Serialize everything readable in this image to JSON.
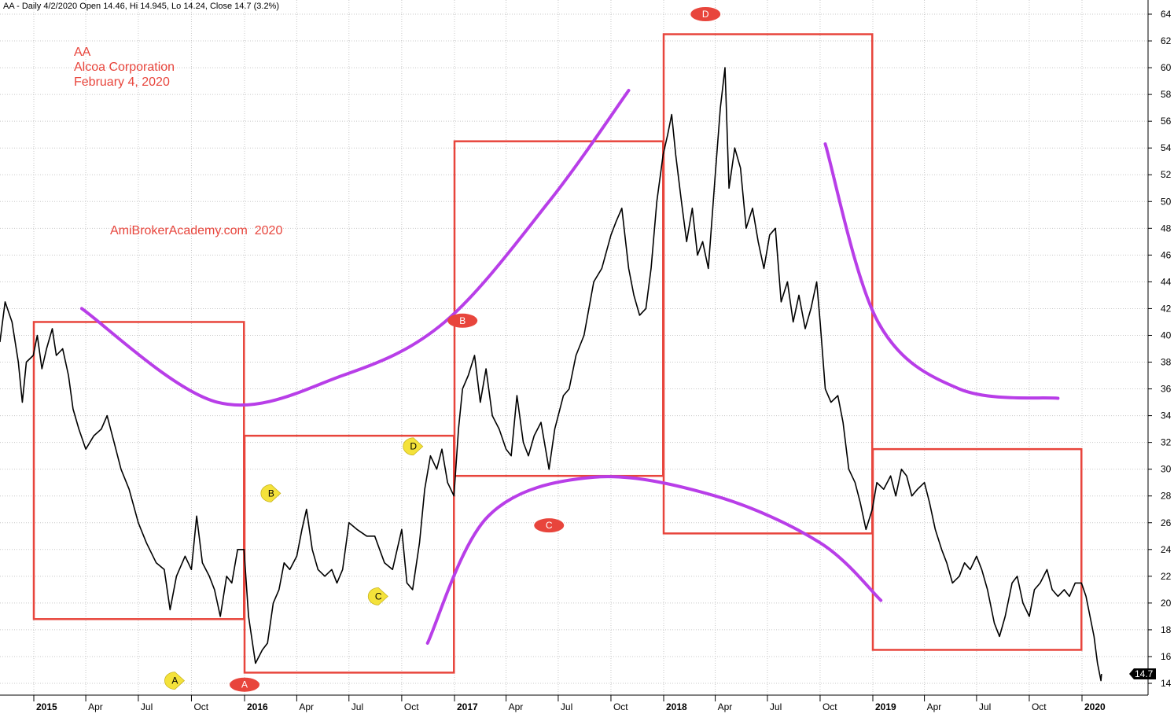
{
  "header": {
    "quote_line": "AA - Daily 4/2/2020 Open 14.46, Hi 14.945, Lo 14.24, Close 14.7 (3.2%)"
  },
  "annotations": {
    "ticker": "AA",
    "company": "Alcoa Corporation",
    "date": "February 4, 2020",
    "watermark": "AmiBrokerAcademy.com  2020"
  },
  "last_price_badge": "14.7",
  "colors": {
    "price_line": "#000000",
    "box": "#e8453c",
    "curve": "#b83ee8",
    "red_marker": "#e8453c",
    "yellow_marker": "#f4e23a",
    "grid": "#c8c8c8",
    "badge_bg": "#000000"
  },
  "chart_data": {
    "type": "line",
    "ylim": [
      13,
      65
    ],
    "y_ticks": [
      14,
      16,
      18,
      20,
      22,
      24,
      26,
      28,
      30,
      32,
      34,
      36,
      38,
      40,
      42,
      44,
      46,
      48,
      50,
      52,
      54,
      56,
      58,
      60,
      62,
      64
    ],
    "x_ticks": [
      {
        "label": "2015",
        "year": true
      },
      {
        "label": "Apr",
        "year": false
      },
      {
        "label": "Jul",
        "year": false
      },
      {
        "label": "Oct",
        "year": false
      },
      {
        "label": "2016",
        "year": true
      },
      {
        "label": "Apr",
        "year": false
      },
      {
        "label": "Jul",
        "year": false
      },
      {
        "label": "Oct",
        "year": false
      },
      {
        "label": "2017",
        "year": true
      },
      {
        "label": "Apr",
        "year": false
      },
      {
        "label": "Jul",
        "year": false
      },
      {
        "label": "Oct",
        "year": false
      },
      {
        "label": "2018",
        "year": true
      },
      {
        "label": "Apr",
        "year": false
      },
      {
        "label": "Jul",
        "year": false
      },
      {
        "label": "Oct",
        "year": false
      },
      {
        "label": "2019",
        "year": true
      },
      {
        "label": "Apr",
        "year": false
      },
      {
        "label": "Jul",
        "year": false
      },
      {
        "label": "Oct",
        "year": false
      },
      {
        "label": "2020",
        "year": true
      }
    ],
    "series": [
      {
        "values": [
          [
            "2014-11-03",
            39.5
          ],
          [
            "2014-11-12",
            42.5
          ],
          [
            "2014-11-24",
            41.0
          ],
          [
            "2014-12-05",
            38.0
          ],
          [
            "2014-12-12",
            35.0
          ],
          [
            "2014-12-19",
            38.0
          ],
          [
            "2014-12-31",
            38.5
          ],
          [
            "2015-01-07",
            40.0
          ],
          [
            "2015-01-15",
            37.5
          ],
          [
            "2015-01-23",
            39.0
          ],
          [
            "2015-02-02",
            40.5
          ],
          [
            "2015-02-09",
            38.5
          ],
          [
            "2015-02-20",
            39.0
          ],
          [
            "2015-03-02",
            37.0
          ],
          [
            "2015-03-10",
            34.5
          ],
          [
            "2015-03-20",
            33.0
          ],
          [
            "2015-04-01",
            31.5
          ],
          [
            "2015-04-15",
            32.5
          ],
          [
            "2015-04-28",
            33.0
          ],
          [
            "2015-05-08",
            34.0
          ],
          [
            "2015-05-20",
            32.0
          ],
          [
            "2015-06-01",
            30.0
          ],
          [
            "2015-06-15",
            28.5
          ],
          [
            "2015-07-01",
            26.0
          ],
          [
            "2015-07-15",
            24.5
          ],
          [
            "2015-08-01",
            23.0
          ],
          [
            "2015-08-15",
            22.5
          ],
          [
            "2015-08-25",
            19.5
          ],
          [
            "2015-09-05",
            22.0
          ],
          [
            "2015-09-20",
            23.5
          ],
          [
            "2015-10-01",
            22.5
          ],
          [
            "2015-10-10",
            26.5
          ],
          [
            "2015-10-20",
            23.0
          ],
          [
            "2015-11-01",
            22.0
          ],
          [
            "2015-11-10",
            21.0
          ],
          [
            "2015-11-20",
            19.0
          ],
          [
            "2015-12-01",
            22.0
          ],
          [
            "2015-12-10",
            21.5
          ],
          [
            "2015-12-20",
            24.0
          ],
          [
            "2015-12-31",
            24.0
          ],
          [
            "2016-01-08",
            19.0
          ],
          [
            "2016-01-20",
            15.5
          ],
          [
            "2016-02-01",
            16.5
          ],
          [
            "2016-02-10",
            17.0
          ],
          [
            "2016-02-20",
            20.0
          ],
          [
            "2016-03-01",
            21.0
          ],
          [
            "2016-03-10",
            23.0
          ],
          [
            "2016-03-20",
            22.5
          ],
          [
            "2016-04-01",
            23.5
          ],
          [
            "2016-04-10",
            25.5
          ],
          [
            "2016-04-18",
            27.0
          ],
          [
            "2016-04-28",
            24.0
          ],
          [
            "2016-05-08",
            22.5
          ],
          [
            "2016-05-20",
            22.0
          ],
          [
            "2016-06-01",
            22.5
          ],
          [
            "2016-06-10",
            21.5
          ],
          [
            "2016-06-20",
            22.5
          ],
          [
            "2016-07-01",
            26.0
          ],
          [
            "2016-07-15",
            25.5
          ],
          [
            "2016-08-01",
            25.0
          ],
          [
            "2016-08-15",
            25.0
          ],
          [
            "2016-09-01",
            23.0
          ],
          [
            "2016-09-15",
            22.5
          ],
          [
            "2016-10-01",
            25.5
          ],
          [
            "2016-10-10",
            21.5
          ],
          [
            "2016-10-20",
            21.0
          ],
          [
            "2016-11-01",
            24.5
          ],
          [
            "2016-11-10",
            28.5
          ],
          [
            "2016-11-20",
            31.0
          ],
          [
            "2016-12-01",
            30.0
          ],
          [
            "2016-12-10",
            31.5
          ],
          [
            "2016-12-20",
            29.0
          ],
          [
            "2016-12-31",
            28.0
          ],
          [
            "2017-01-08",
            33.0
          ],
          [
            "2017-01-15",
            36.0
          ],
          [
            "2017-01-25",
            37.0
          ],
          [
            "2017-02-05",
            38.5
          ],
          [
            "2017-02-15",
            35.0
          ],
          [
            "2017-02-25",
            37.5
          ],
          [
            "2017-03-08",
            34.0
          ],
          [
            "2017-03-20",
            33.0
          ],
          [
            "2017-04-01",
            31.5
          ],
          [
            "2017-04-10",
            31.0
          ],
          [
            "2017-04-20",
            35.5
          ],
          [
            "2017-05-01",
            32.0
          ],
          [
            "2017-05-10",
            31.0
          ],
          [
            "2017-05-20",
            32.5
          ],
          [
            "2017-06-01",
            33.5
          ],
          [
            "2017-06-15",
            30.0
          ],
          [
            "2017-06-25",
            33.0
          ],
          [
            "2017-07-10",
            35.5
          ],
          [
            "2017-07-20",
            36.0
          ],
          [
            "2017-08-01",
            38.5
          ],
          [
            "2017-08-15",
            40.0
          ],
          [
            "2017-09-01",
            44.0
          ],
          [
            "2017-09-15",
            45.0
          ],
          [
            "2017-10-01",
            47.5
          ],
          [
            "2017-10-10",
            48.5
          ],
          [
            "2017-10-20",
            49.5
          ],
          [
            "2017-11-01",
            45.0
          ],
          [
            "2017-11-10",
            43.0
          ],
          [
            "2017-11-20",
            41.5
          ],
          [
            "2017-12-01",
            42.0
          ],
          [
            "2017-12-10",
            45.0
          ],
          [
            "2017-12-20",
            50.0
          ],
          [
            "2017-12-31",
            53.5
          ],
          [
            "2018-01-08",
            55.0
          ],
          [
            "2018-01-15",
            56.5
          ],
          [
            "2018-01-22",
            53.5
          ],
          [
            "2018-02-01",
            50.0
          ],
          [
            "2018-02-10",
            47.0
          ],
          [
            "2018-02-20",
            49.5
          ],
          [
            "2018-03-01",
            46.0
          ],
          [
            "2018-03-10",
            47.0
          ],
          [
            "2018-03-20",
            45.0
          ],
          [
            "2018-04-01",
            52.0
          ],
          [
            "2018-04-10",
            57.0
          ],
          [
            "2018-04-18",
            60.0
          ],
          [
            "2018-04-25",
            51.0
          ],
          [
            "2018-05-05",
            54.0
          ],
          [
            "2018-05-15",
            52.5
          ],
          [
            "2018-05-25",
            48.0
          ],
          [
            "2018-06-05",
            49.5
          ],
          [
            "2018-06-15",
            47.0
          ],
          [
            "2018-06-25",
            45.0
          ],
          [
            "2018-07-05",
            47.5
          ],
          [
            "2018-07-15",
            48.0
          ],
          [
            "2018-07-25",
            42.5
          ],
          [
            "2018-08-05",
            44.0
          ],
          [
            "2018-08-15",
            41.0
          ],
          [
            "2018-08-25",
            43.0
          ],
          [
            "2018-09-05",
            40.5
          ],
          [
            "2018-09-15",
            42.0
          ],
          [
            "2018-09-25",
            44.0
          ],
          [
            "2018-10-01",
            41.0
          ],
          [
            "2018-10-10",
            36.0
          ],
          [
            "2018-10-20",
            35.0
          ],
          [
            "2018-11-01",
            35.5
          ],
          [
            "2018-11-10",
            33.5
          ],
          [
            "2018-11-20",
            30.0
          ],
          [
            "2018-12-01",
            29.0
          ],
          [
            "2018-12-10",
            27.5
          ],
          [
            "2018-12-20",
            25.5
          ],
          [
            "2018-12-31",
            27.0
          ],
          [
            "2019-01-08",
            29.0
          ],
          [
            "2019-01-20",
            28.5
          ],
          [
            "2019-02-01",
            29.5
          ],
          [
            "2019-02-10",
            28.0
          ],
          [
            "2019-02-20",
            30.0
          ],
          [
            "2019-03-01",
            29.5
          ],
          [
            "2019-03-10",
            28.0
          ],
          [
            "2019-03-20",
            28.5
          ],
          [
            "2019-04-01",
            29.0
          ],
          [
            "2019-04-10",
            27.5
          ],
          [
            "2019-04-20",
            25.5
          ],
          [
            "2019-05-01",
            24.0
          ],
          [
            "2019-05-10",
            23.0
          ],
          [
            "2019-05-20",
            21.5
          ],
          [
            "2019-06-01",
            22.0
          ],
          [
            "2019-06-10",
            23.0
          ],
          [
            "2019-06-20",
            22.5
          ],
          [
            "2019-07-01",
            23.5
          ],
          [
            "2019-07-10",
            22.5
          ],
          [
            "2019-07-20",
            21.0
          ],
          [
            "2019-08-01",
            18.5
          ],
          [
            "2019-08-10",
            17.5
          ],
          [
            "2019-08-20",
            19.0
          ],
          [
            "2019-09-01",
            21.5
          ],
          [
            "2019-09-10",
            22.0
          ],
          [
            "2019-09-20",
            20.0
          ],
          [
            "2019-10-01",
            19.0
          ],
          [
            "2019-10-10",
            21.0
          ],
          [
            "2019-10-20",
            21.5
          ],
          [
            "2019-11-01",
            22.5
          ],
          [
            "2019-11-10",
            21.0
          ],
          [
            "2019-11-20",
            20.5
          ],
          [
            "2019-12-01",
            21.0
          ],
          [
            "2019-12-10",
            20.5
          ],
          [
            "2019-12-20",
            21.5
          ],
          [
            "2019-12-31",
            21.5
          ],
          [
            "2020-01-08",
            20.5
          ],
          [
            "2020-01-15",
            19.0
          ],
          [
            "2020-01-22",
            17.5
          ],
          [
            "2020-01-28",
            15.5
          ],
          [
            "2020-02-03",
            14.2
          ],
          [
            "2020-02-04",
            14.7
          ]
        ]
      }
    ],
    "boxes": [
      {
        "x0": "2015-01-01",
        "x1": "2015-12-31",
        "y0": 18.8,
        "y1": 41.0
      },
      {
        "x0": "2016-01-01",
        "x1": "2016-12-31",
        "y0": 14.8,
        "y1": 32.5
      },
      {
        "x0": "2017-01-01",
        "x1": "2017-12-31",
        "y0": 29.5,
        "y1": 54.5
      },
      {
        "x0": "2018-01-01",
        "x1": "2018-12-31",
        "y0": 25.2,
        "y1": 62.5
      },
      {
        "x0": "2019-01-01",
        "x1": "2019-12-31",
        "y0": 16.5,
        "y1": 31.5
      }
    ],
    "curves": [
      [
        [
          "2015-03-25",
          42.0
        ],
        [
          "2015-11-15",
          35.0
        ],
        [
          "2016-06-20",
          37.0
        ],
        [
          "2016-12-15",
          41.0
        ],
        [
          "2017-06-15",
          50.0
        ],
        [
          "2017-11-01",
          58.3
        ]
      ],
      [
        [
          "2016-11-15",
          17.0
        ],
        [
          "2017-03-01",
          26.5
        ],
        [
          "2017-09-01",
          29.4
        ],
        [
          "2018-04-01",
          28.0
        ],
        [
          "2018-10-01",
          24.5
        ],
        [
          "2019-01-15",
          20.2
        ]
      ],
      [
        [
          "2018-10-10",
          54.3
        ],
        [
          "2019-01-10",
          41.0
        ],
        [
          "2019-06-01",
          36.0
        ],
        [
          "2019-11-20",
          35.3
        ]
      ]
    ],
    "markers": [
      {
        "label": "A",
        "color": "red",
        "x": "2016-01-01",
        "y": 13.9
      },
      {
        "label": "B",
        "color": "red",
        "x": "2017-01-15",
        "y": 41.1
      },
      {
        "label": "C",
        "color": "red",
        "x": "2017-06-15",
        "y": 25.8
      },
      {
        "label": "D",
        "color": "red",
        "x": "2018-03-15",
        "y": 64.0
      },
      {
        "label": "A",
        "color": "yellow",
        "x": "2015-09-01",
        "y": 14.2
      },
      {
        "label": "B",
        "color": "yellow",
        "x": "2016-02-15",
        "y": 28.2
      },
      {
        "label": "C",
        "color": "yellow",
        "x": "2016-08-20",
        "y": 20.5
      },
      {
        "label": "D",
        "color": "yellow",
        "x": "2016-10-20",
        "y": 31.7
      }
    ]
  }
}
